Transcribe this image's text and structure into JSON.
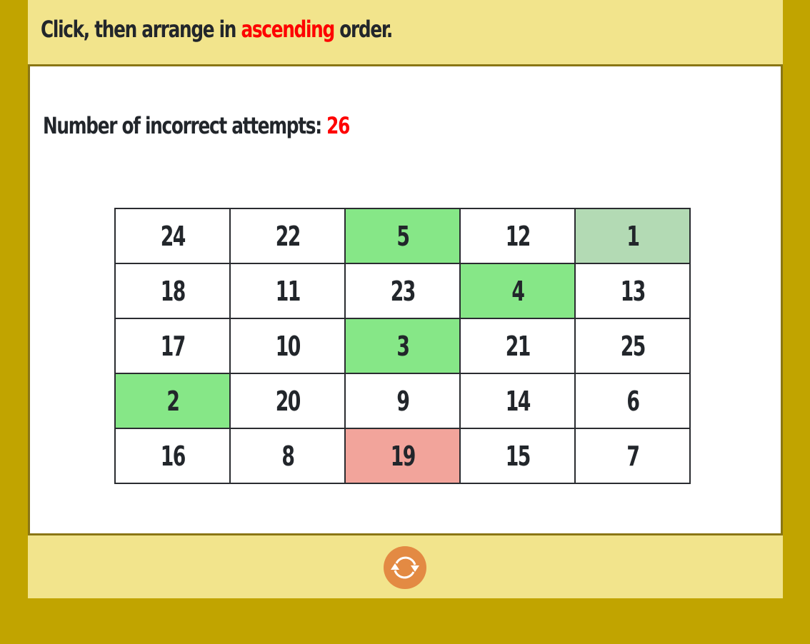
{
  "header": {
    "prefix": "Click, then arrange in ",
    "keyword": "ascending",
    "suffix": " order."
  },
  "attempts": {
    "label": "Number of incorrect attempts: ",
    "count": "26"
  },
  "colors": {
    "correct": "#86e787",
    "first": "#b3dab4",
    "wrong": "#f2a49b",
    "default": "#ffffff",
    "accent": "#fe0000"
  },
  "grid": [
    [
      {
        "v": "24",
        "s": "default"
      },
      {
        "v": "22",
        "s": "default"
      },
      {
        "v": "5",
        "s": "correct"
      },
      {
        "v": "12",
        "s": "default"
      },
      {
        "v": "1",
        "s": "first"
      }
    ],
    [
      {
        "v": "18",
        "s": "default"
      },
      {
        "v": "11",
        "s": "default"
      },
      {
        "v": "23",
        "s": "default"
      },
      {
        "v": "4",
        "s": "correct"
      },
      {
        "v": "13",
        "s": "default"
      }
    ],
    [
      {
        "v": "17",
        "s": "default"
      },
      {
        "v": "10",
        "s": "default"
      },
      {
        "v": "3",
        "s": "correct"
      },
      {
        "v": "21",
        "s": "default"
      },
      {
        "v": "25",
        "s": "default"
      }
    ],
    [
      {
        "v": "2",
        "s": "correct"
      },
      {
        "v": "20",
        "s": "default"
      },
      {
        "v": "9",
        "s": "default"
      },
      {
        "v": "14",
        "s": "default"
      },
      {
        "v": "6",
        "s": "default"
      }
    ],
    [
      {
        "v": "16",
        "s": "default"
      },
      {
        "v": "8",
        "s": "default"
      },
      {
        "v": "19",
        "s": "wrong"
      },
      {
        "v": "15",
        "s": "default"
      },
      {
        "v": "7",
        "s": "default"
      }
    ]
  ],
  "footer": {
    "refresh_icon": "refresh-icon"
  }
}
